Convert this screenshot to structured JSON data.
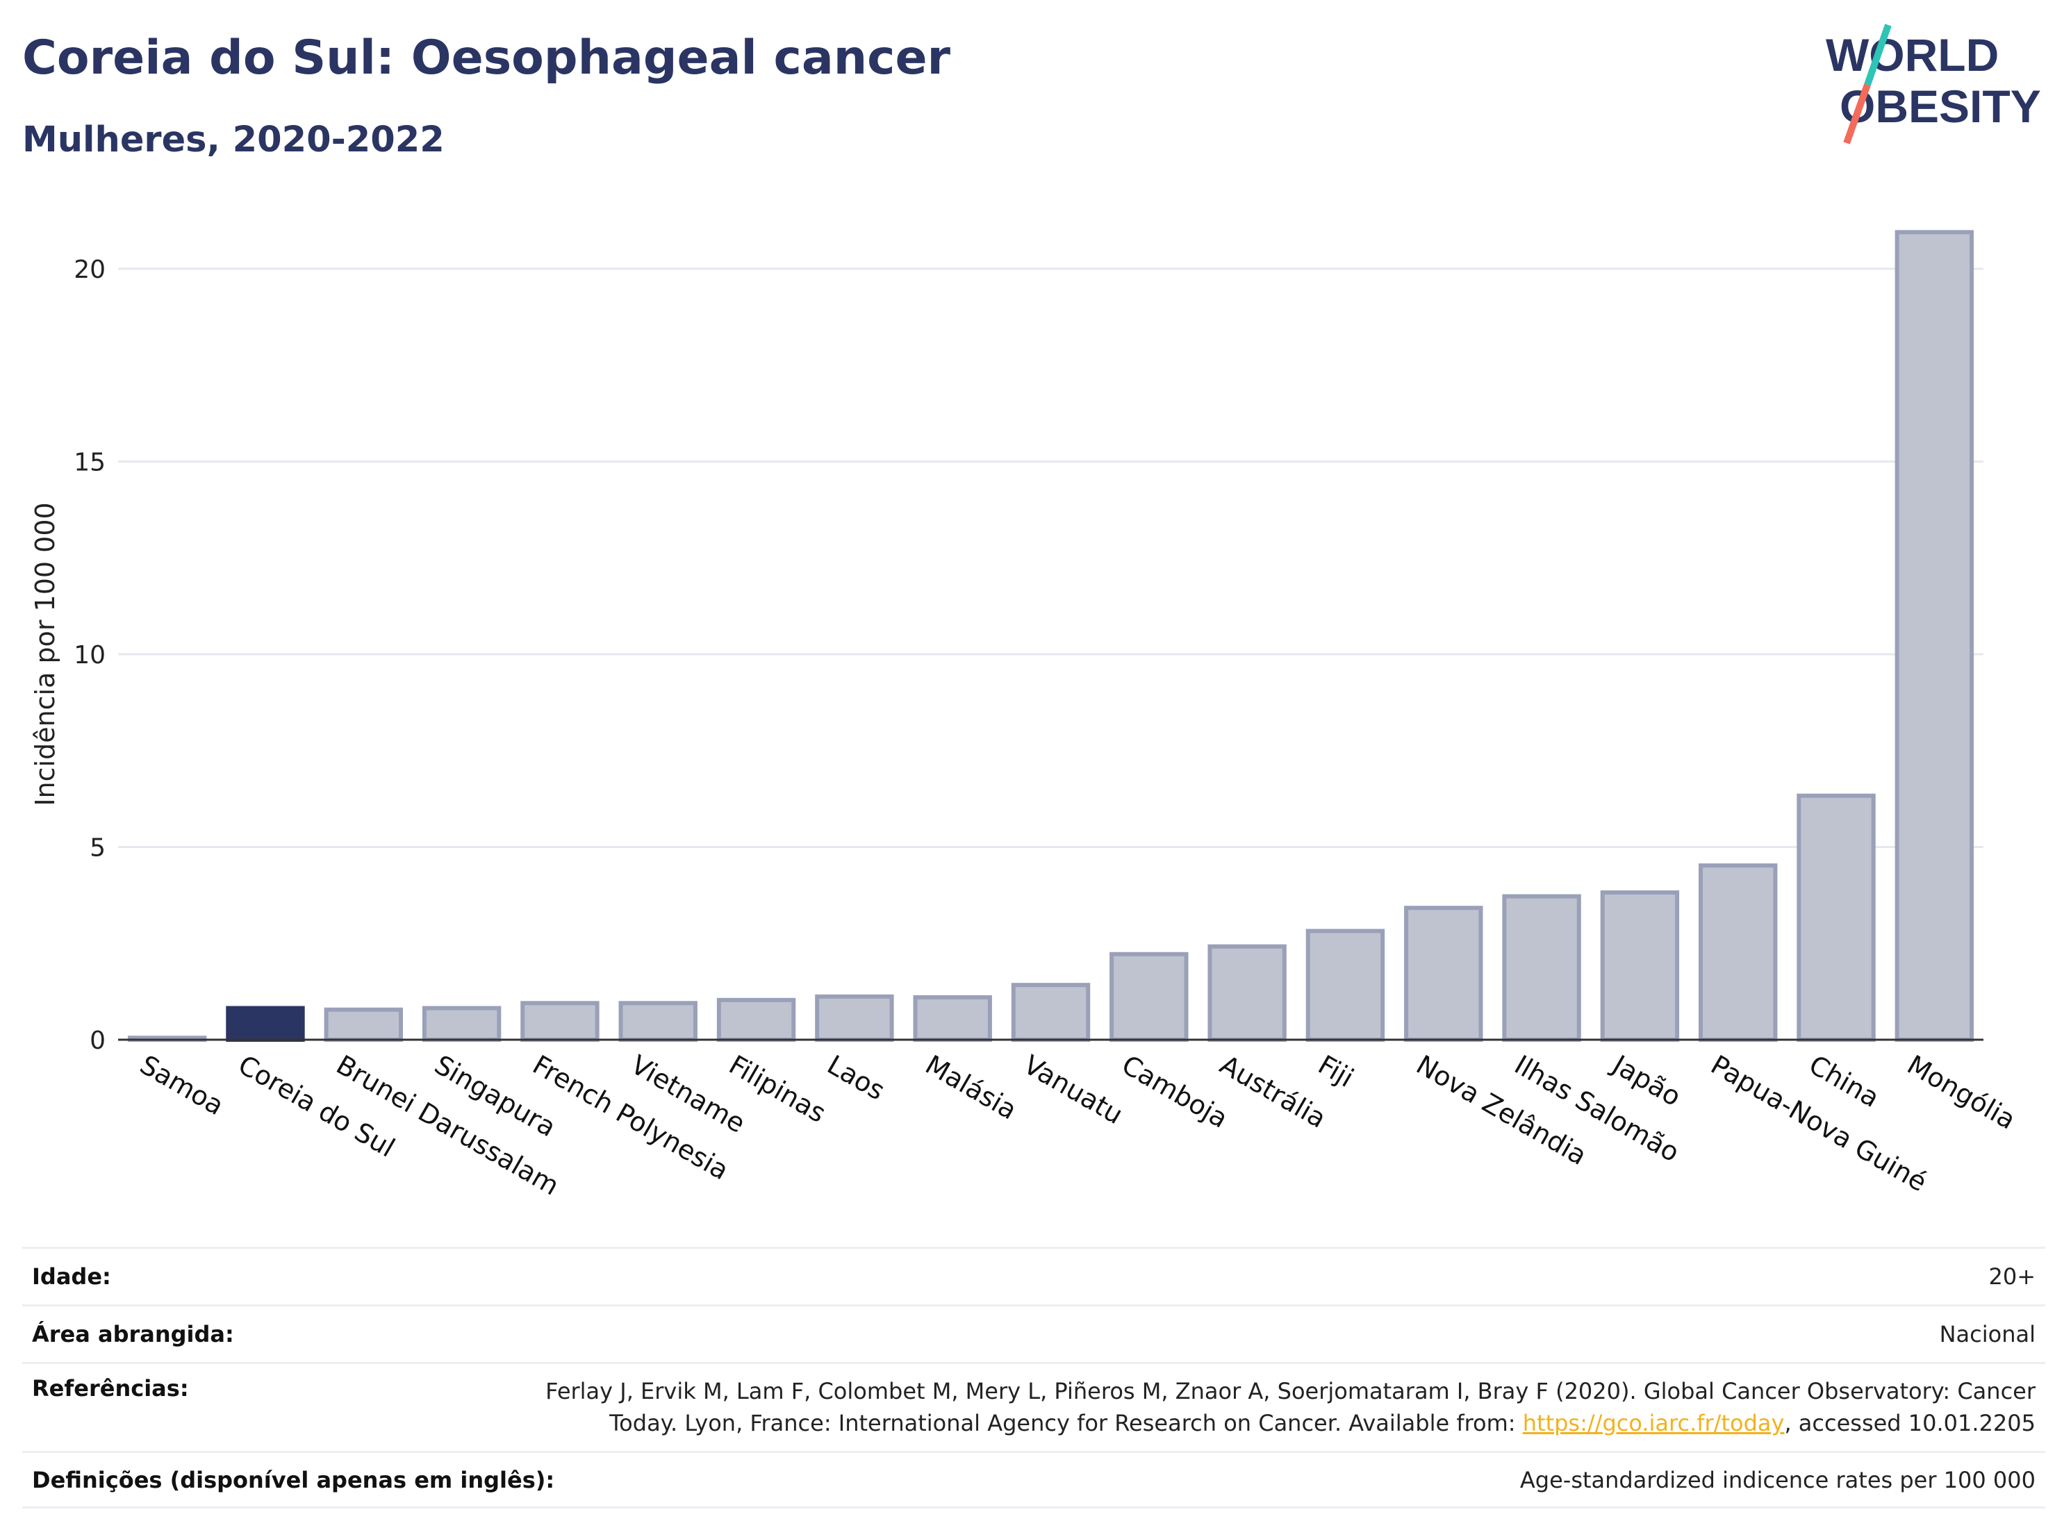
{
  "header": {
    "title": "Coreia do Sul: Oesophageal cancer",
    "subtitle": "Mulheres, 2020-2022"
  },
  "logo": {
    "line1": "WORLD",
    "line2": "OBESITY",
    "accent_colors": [
      "#2ec4b6",
      "#f26b5b"
    ]
  },
  "colors": {
    "highlight": "#2b3563",
    "bar_fill": "#bfc3d0",
    "bar_stroke": "#9aa0b8",
    "grid": "#e6e8ef",
    "link": "#f2b21d"
  },
  "chart_data": {
    "type": "bar",
    "ylabel": "Incidência por 100 000",
    "xlabel": "",
    "ylim": [
      0,
      21.5
    ],
    "yticks": [
      0,
      5,
      10,
      15,
      20
    ],
    "grid": true,
    "highlight": "Coreia do Sul",
    "categories": [
      "Samoa",
      "Coreia do Sul",
      "Brunei Darussalam",
      "Singapura",
      "French Polynesia",
      "Vietname",
      "Filipinas",
      "Laos",
      "Malásia",
      "Vanuatu",
      "Camboja",
      "Austrália",
      "Fiji",
      "Nova Zelândia",
      "Ilhas Salomão",
      "Japão",
      "Papua-Nova Guiné",
      "China",
      "Mongólia"
    ],
    "values": [
      0.05,
      0.82,
      0.78,
      0.82,
      0.95,
      0.95,
      1.03,
      1.12,
      1.1,
      1.42,
      2.22,
      2.42,
      2.82,
      3.42,
      3.72,
      3.82,
      4.52,
      6.33,
      20.95
    ]
  },
  "meta": {
    "rows": [
      {
        "label": "Idade:",
        "value": "20+"
      },
      {
        "label": "Área abrangida:",
        "value": "Nacional"
      },
      {
        "label": "Referências:",
        "value_line1": "Ferlay J, Ervik M, Lam F, Colombet M, Mery L, Piñeros M, Znaor A, Soerjomataram I, Bray F (2020). Global Cancer Observatory: Cancer",
        "value_line2_pre": "Today. Lyon, France: International Agency for Research on Cancer. Available from: ",
        "link_text": "https://gco.iarc.fr/today",
        "value_line2_post": ", accessed 10.01.2205"
      },
      {
        "label": "Definições (disponível apenas em inglês):",
        "value": "Age-standardized indicence rates per 100 000"
      }
    ]
  }
}
